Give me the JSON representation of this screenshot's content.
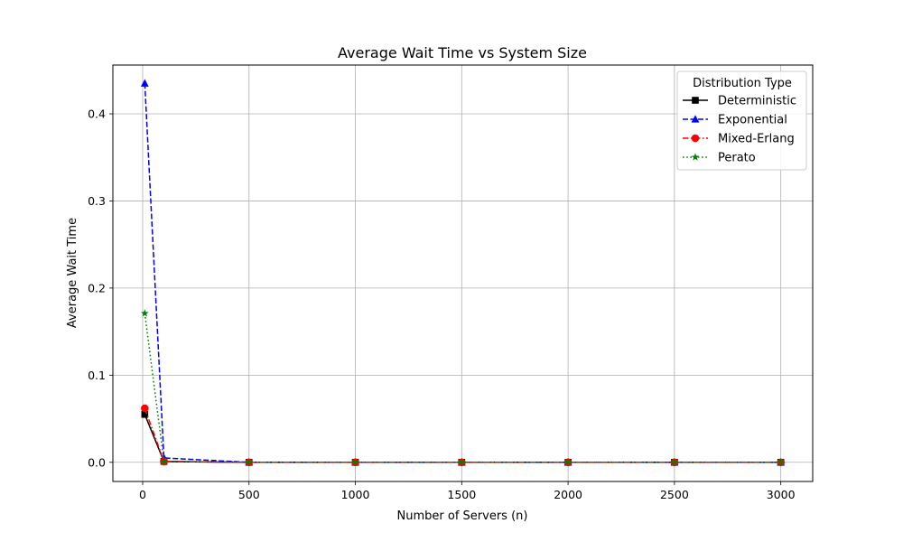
{
  "chart_data": {
    "type": "line",
    "title": "Average Wait Time vs System Size",
    "xlabel": "Number of Servers (n)",
    "ylabel": "Average Wait Time",
    "xlim": [
      -140,
      3150
    ],
    "ylim": [
      -0.022,
      0.456
    ],
    "xticks": [
      0,
      500,
      1000,
      1500,
      2000,
      2500,
      3000
    ],
    "yticks": [
      0.0,
      0.1,
      0.2,
      0.3,
      0.4
    ],
    "ytick_labels": [
      "0.0",
      "0.1",
      "0.2",
      "0.3",
      "0.4"
    ],
    "grid": true,
    "legend_title": "Distribution Type",
    "legend_position": "top-right",
    "x": [
      10,
      100,
      500,
      1000,
      1500,
      2000,
      2500,
      3000
    ],
    "series": [
      {
        "name": "Deterministic",
        "color": "#000000",
        "dash": "solid",
        "marker": "square",
        "values": [
          0.055,
          0.001,
          0.0,
          0.0,
          0.0,
          0.0,
          0.0,
          0.0
        ]
      },
      {
        "name": "Exponential",
        "color": "#0000ff",
        "dash": "dashed",
        "marker": "triangle-up",
        "values": [
          0.435,
          0.005,
          0.0,
          0.0,
          0.0,
          0.0,
          0.0,
          0.0
        ]
      },
      {
        "name": "Mixed-Erlang",
        "color": "#ff0000",
        "dash": "dashdot",
        "marker": "circle",
        "values": [
          0.062,
          0.001,
          0.0,
          0.0,
          0.0,
          0.0,
          0.0,
          0.0
        ]
      },
      {
        "name": "Perato",
        "color": "#008000",
        "dash": "dotted",
        "marker": "star",
        "values": [
          0.171,
          0.001,
          0.0,
          0.0,
          0.0,
          0.0,
          0.0,
          0.0
        ]
      }
    ]
  }
}
